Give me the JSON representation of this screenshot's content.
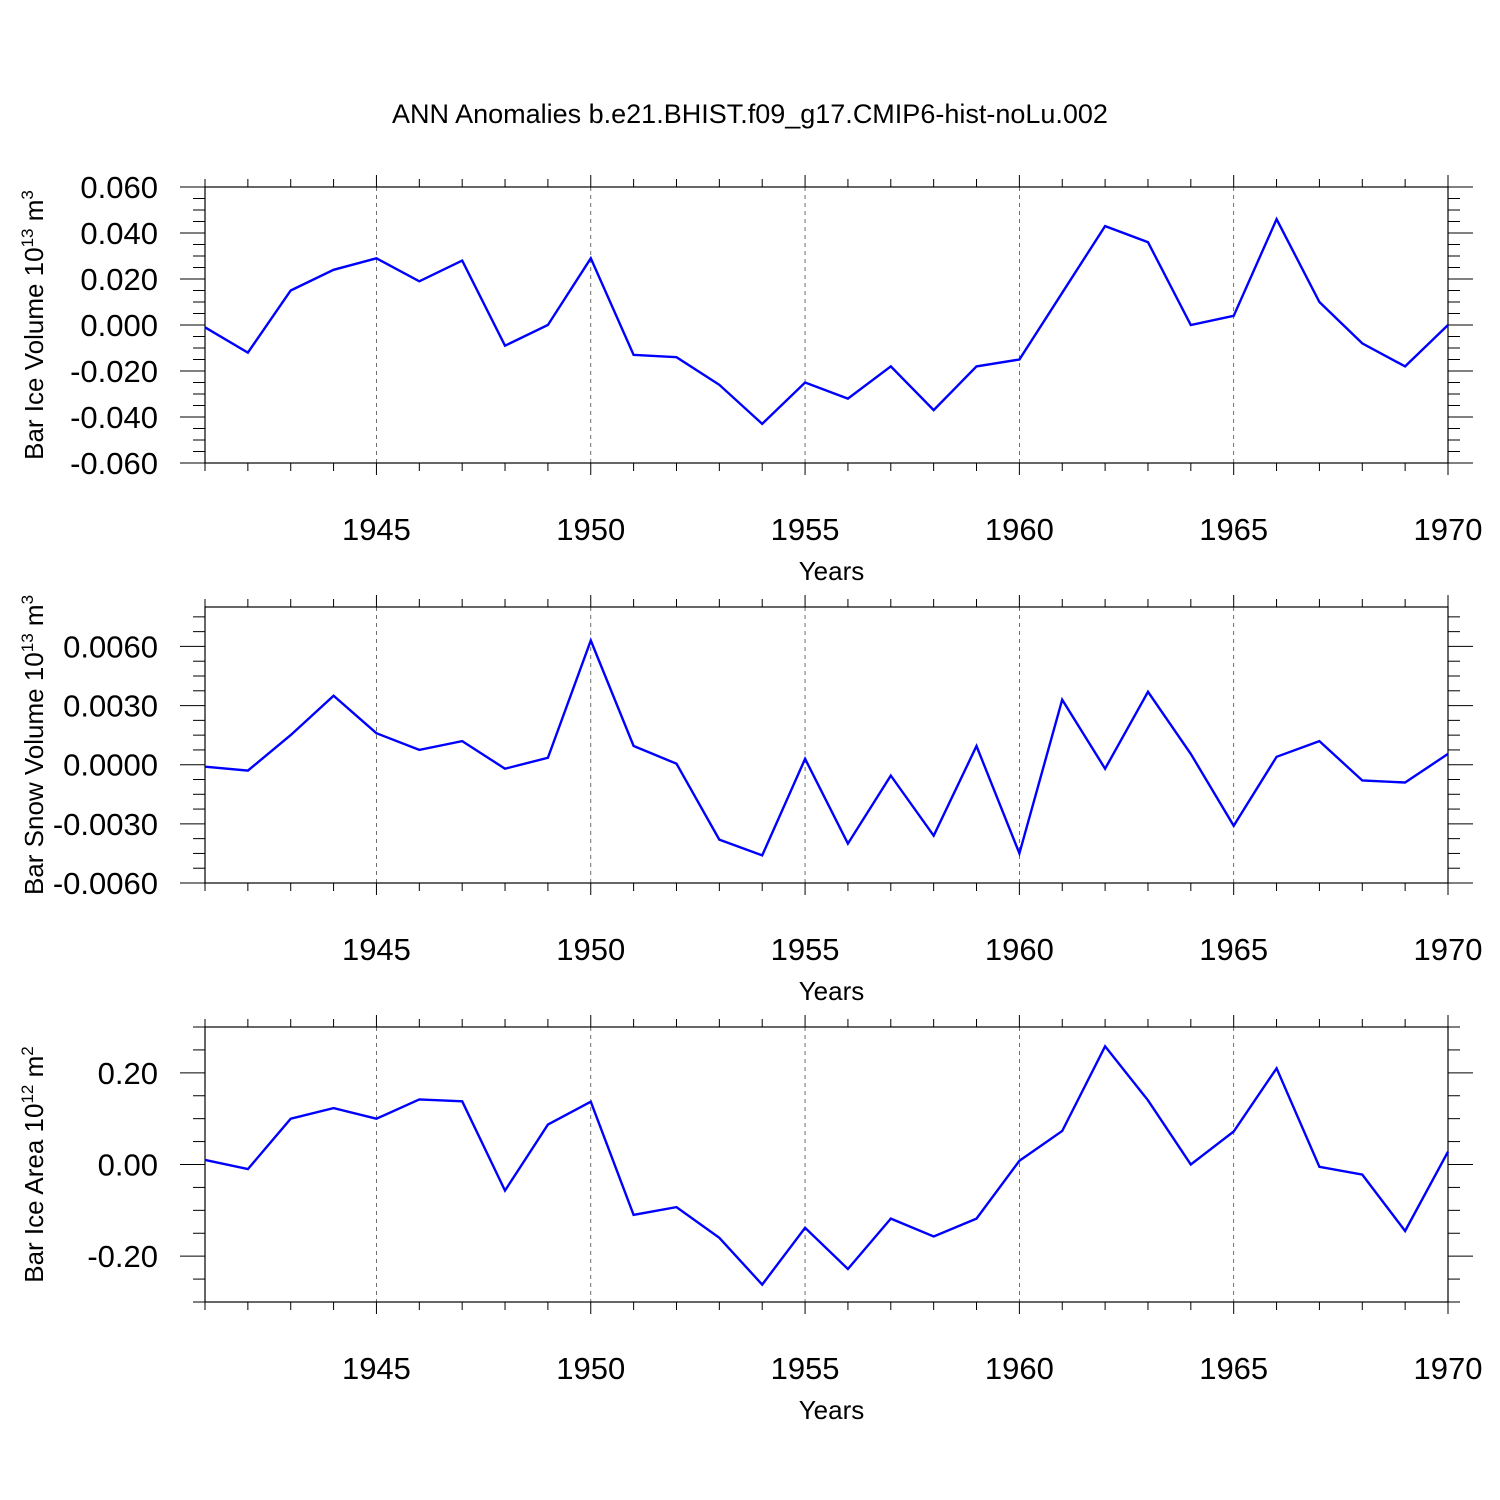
{
  "figure": {
    "title": "ANN Anomalies b.e21.BHIST.f09_g17.CMIP6-hist-noLu.002"
  },
  "colors": {
    "line": "#0000ff",
    "axis": "#000000",
    "grid": "#000000"
  },
  "chart_data": [
    {
      "type": "line",
      "xlabel": "Years",
      "ylabel": {
        "base": "Bar Ice Volume 10",
        "exp": "13",
        "unit": " m",
        "unit_exp": "3"
      },
      "xlim": [
        1941,
        1970
      ],
      "ylim": [
        -0.06,
        0.06
      ],
      "x_ticks": [
        "1945",
        "1950",
        "1955",
        "1960",
        "1965",
        "1970"
      ],
      "y_ticks": [
        "0.060",
        "0.040",
        "0.020",
        "0.000",
        "-0.020",
        "-0.040",
        "-0.060"
      ],
      "y_tick_values": [
        0.06,
        0.04,
        0.02,
        0.0,
        -0.02,
        -0.04,
        -0.06
      ],
      "grid": "dashed vertical at major x ticks",
      "series": [
        {
          "x": [
            1941,
            1942,
            1943,
            1944,
            1945,
            1946,
            1947,
            1948,
            1949,
            1950,
            1951,
            1952,
            1953,
            1954,
            1955,
            1956,
            1957,
            1958,
            1959,
            1960,
            1961,
            1962,
            1963,
            1964,
            1965,
            1966,
            1967,
            1968,
            1969,
            1970
          ],
          "values": [
            -0.001,
            -0.012,
            0.015,
            0.024,
            0.029,
            0.019,
            0.028,
            -0.009,
            0.0,
            0.029,
            -0.013,
            -0.014,
            -0.026,
            -0.043,
            -0.025,
            -0.032,
            -0.018,
            -0.037,
            -0.018,
            -0.015,
            0.014,
            0.043,
            0.036,
            0.0,
            0.004,
            0.046,
            0.01,
            -0.008,
            -0.018,
            0.0
          ]
        }
      ]
    },
    {
      "type": "line",
      "xlabel": "Years",
      "ylabel": {
        "base": "Bar Snow Volume 10",
        "exp": "13",
        "unit": " m",
        "unit_exp": "3"
      },
      "xlim": [
        1941,
        1970
      ],
      "ylim": [
        -0.006,
        0.008
      ],
      "x_ticks": [
        "1945",
        "1950",
        "1955",
        "1960",
        "1965",
        "1970"
      ],
      "y_ticks": [
        "0.0060",
        "0.0030",
        "0.0000",
        "-0.0030",
        "-0.0060"
      ],
      "y_tick_values": [
        0.006,
        0.003,
        0.0,
        -0.003,
        -0.006
      ],
      "grid": "dashed vertical at major x ticks",
      "series": [
        {
          "x": [
            1941,
            1942,
            1943,
            1944,
            1945,
            1946,
            1947,
            1948,
            1949,
            1950,
            1951,
            1952,
            1953,
            1954,
            1955,
            1956,
            1957,
            1958,
            1959,
            1960,
            1961,
            1962,
            1963,
            1964,
            1965,
            1966,
            1967,
            1968,
            1969,
            1970
          ],
          "values": [
            -0.0001,
            -0.0003,
            0.0015,
            0.0035,
            0.0016,
            0.00075,
            0.0012,
            -0.0002,
            0.00035,
            0.0063,
            0.00095,
            5e-05,
            -0.0038,
            -0.0046,
            0.0003,
            -0.004,
            -0.00055,
            -0.0036,
            0.00095,
            -0.0045,
            0.0033,
            -0.0002,
            0.0037,
            0.00055,
            -0.0031,
            0.0004,
            0.0012,
            -0.0008,
            -0.0009,
            0.00055
          ]
        }
      ]
    },
    {
      "type": "line",
      "xlabel": "Years",
      "ylabel": {
        "base": "Bar Ice Area 10",
        "exp": "12",
        "unit": " m",
        "unit_exp": "2"
      },
      "xlim": [
        1941,
        1970
      ],
      "ylim": [
        -0.3,
        0.3
      ],
      "x_ticks": [
        "1945",
        "1950",
        "1955",
        "1960",
        "1965",
        "1970"
      ],
      "y_ticks": [
        "0.20",
        "0.00",
        "-0.20"
      ],
      "y_tick_values": [
        0.2,
        0.0,
        -0.2
      ],
      "grid": "dashed vertical at major x ticks",
      "series": [
        {
          "x": [
            1941,
            1942,
            1943,
            1944,
            1945,
            1946,
            1947,
            1948,
            1949,
            1950,
            1951,
            1952,
            1953,
            1954,
            1955,
            1956,
            1957,
            1958,
            1959,
            1960,
            1961,
            1962,
            1963,
            1964,
            1965,
            1966,
            1967,
            1968,
            1969,
            1970
          ],
          "values": [
            0.01,
            -0.01,
            0.1,
            0.123,
            0.1,
            0.142,
            0.138,
            -0.057,
            0.087,
            0.137,
            -0.11,
            -0.093,
            -0.16,
            -0.262,
            -0.138,
            -0.228,
            -0.118,
            -0.157,
            -0.118,
            0.008,
            0.073,
            0.258,
            0.14,
            0.0,
            0.072,
            0.21,
            -0.005,
            -0.022,
            -0.145,
            0.028
          ]
        }
      ]
    }
  ]
}
